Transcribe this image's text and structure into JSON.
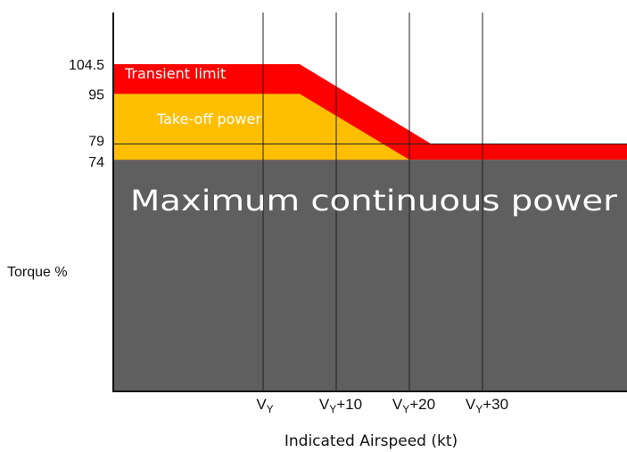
{
  "chart_data": {
    "type": "area",
    "x_categories": [
      "VY",
      "VY+10",
      "VY+20",
      "VY+30"
    ],
    "x_tick_labels": [
      {
        "base": "V",
        "sub": "Y",
        "suffix": ""
      },
      {
        "base": "V",
        "sub": "Y",
        "suffix": "+10"
      },
      {
        "base": "V",
        "sub": "Y",
        "suffix": "+20"
      },
      {
        "base": "V",
        "sub": "Y",
        "suffix": "+30"
      }
    ],
    "y_ticks": [
      104.5,
      95,
      79,
      74
    ],
    "y_tick_labels": [
      "104.5",
      "95",
      "79",
      "74"
    ],
    "ylabel": "Torque %",
    "xlabel": "Indicated Airspeed (kt)",
    "ylim": [
      0,
      121
    ],
    "series": [
      {
        "name": "Transient limit",
        "color": "#ff0000",
        "points": [
          [
            "start",
            104.5
          ],
          [
            "VY+5",
            104.5
          ],
          [
            "VY+23",
            79
          ],
          [
            "end",
            79
          ]
        ]
      },
      {
        "name": "Take-off power",
        "color": "#ffbf00",
        "points": [
          [
            "start",
            95
          ],
          [
            "VY+5",
            95
          ],
          [
            "VY+20",
            74
          ],
          [
            "end",
            74
          ]
        ]
      },
      {
        "name": "Maximum continuous power",
        "color": "#5f5f5f",
        "points": [
          [
            "start",
            74
          ],
          [
            "end",
            74
          ]
        ]
      }
    ],
    "reference_line_y": 79,
    "grid": "vertical lines at VY, VY+10, VY+20, VY+30"
  }
}
